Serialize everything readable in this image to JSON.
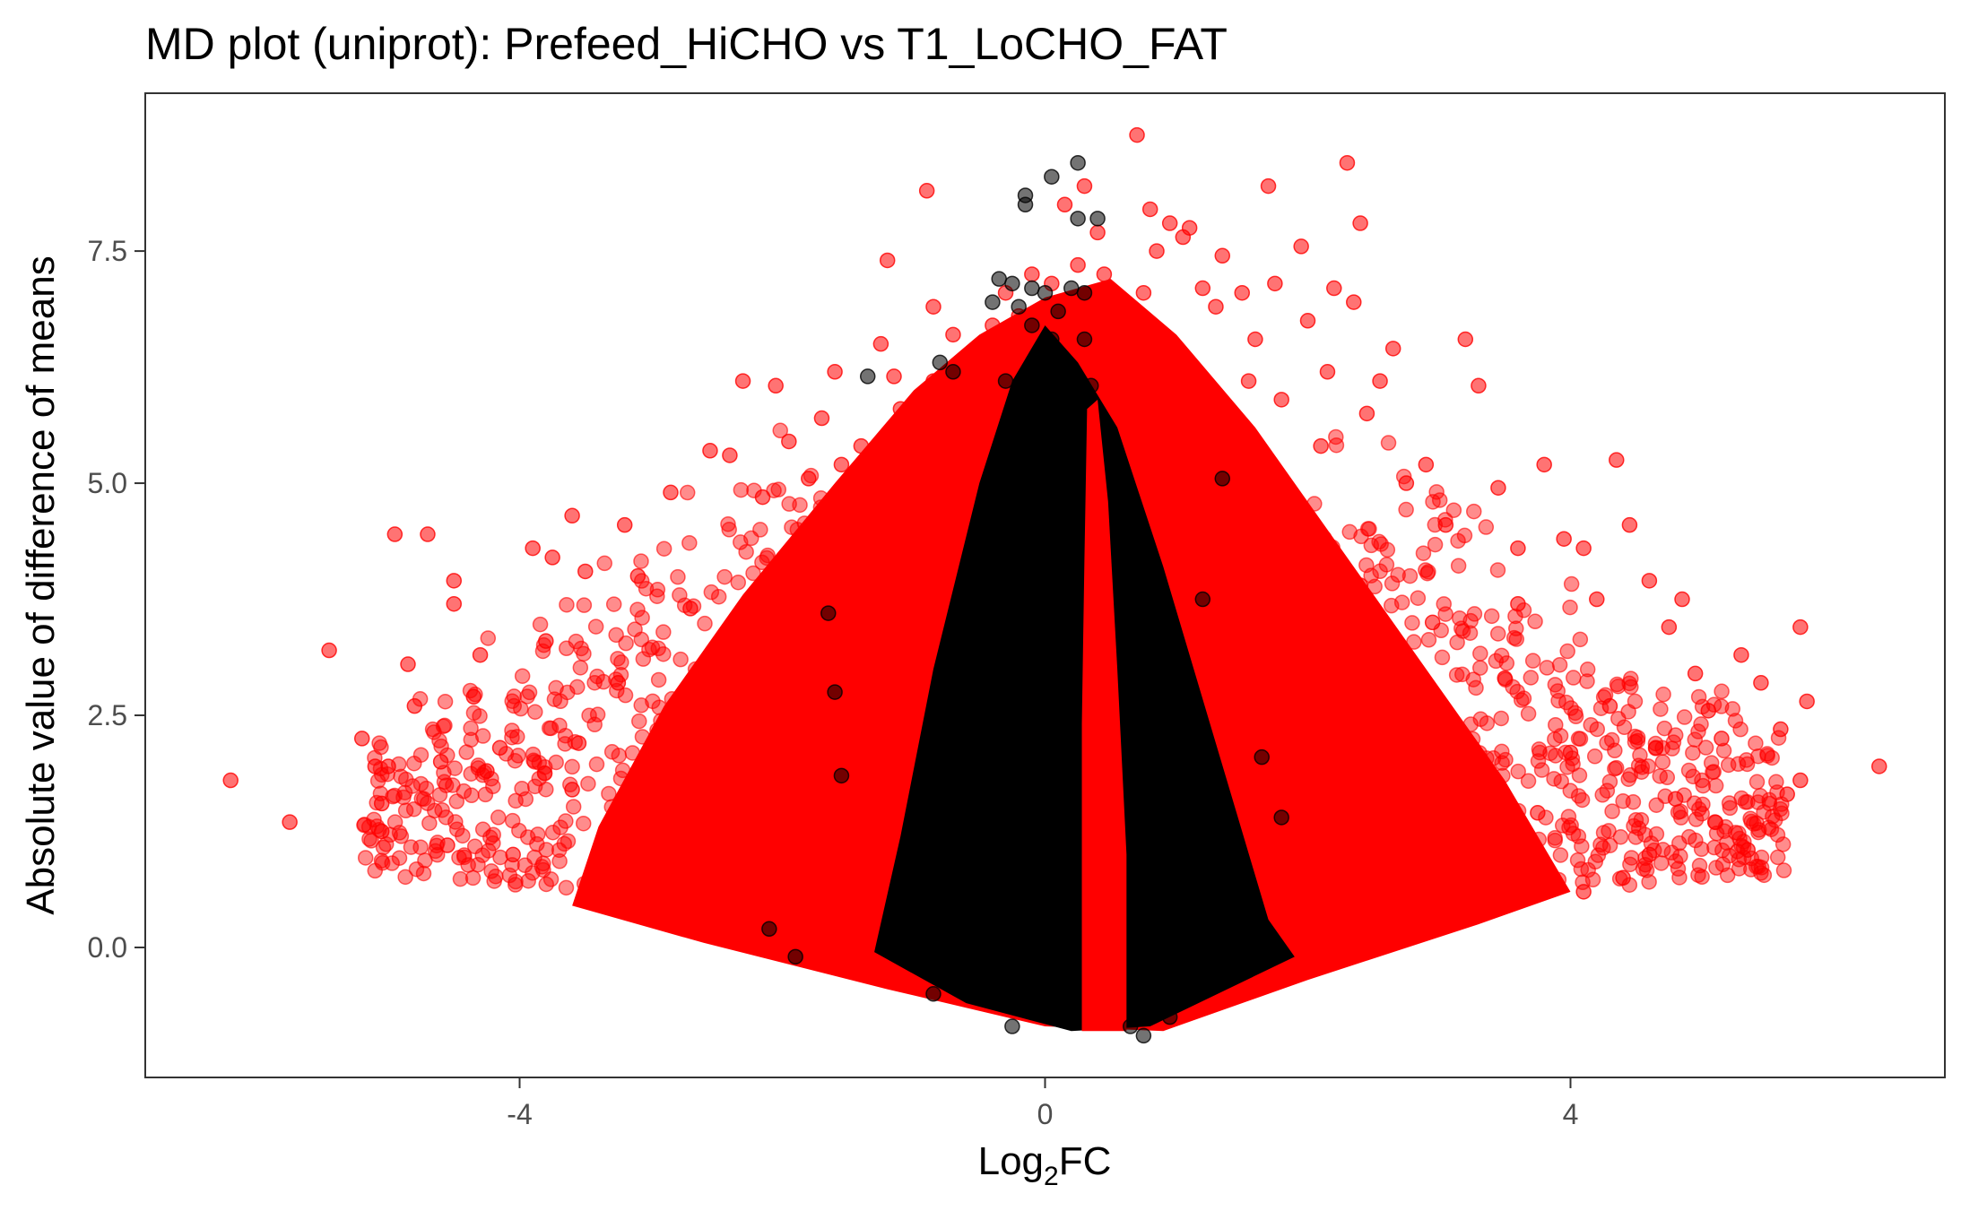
{
  "chart_data": {
    "type": "scatter",
    "title": "MD plot (uniprot): Prefeed_HiCHO vs T1_LoCHO_FAT",
    "xlabel_main": "Log",
    "xlabel_sub": "2",
    "xlabel_tail": "FC",
    "ylabel": "Absolute value of difference of means",
    "xlim": [
      -6.85,
      6.85
    ],
    "ylim": [
      -1.4,
      9.2
    ],
    "x_ticks": [
      {
        "value": -4,
        "label": "-4"
      },
      {
        "value": 0,
        "label": "0"
      },
      {
        "value": 4,
        "label": "4"
      }
    ],
    "y_ticks": [
      {
        "value": 0,
        "label": "0.0"
      },
      {
        "value": 2.5,
        "label": "2.5"
      },
      {
        "value": 5,
        "label": "5.0"
      },
      {
        "value": 7.5,
        "label": "7.5"
      }
    ],
    "grid": false,
    "series": [
      {
        "color": "#FF0000",
        "values": [
          [
            -6.2,
            1.8
          ],
          [
            -5.75,
            1.35
          ],
          [
            -5.45,
            3.2
          ],
          [
            -5.2,
            2.25
          ],
          [
            -5.05,
            1.55
          ],
          [
            -5.05,
            1.25
          ],
          [
            -5.0,
            1.95
          ],
          [
            -4.95,
            4.45
          ],
          [
            -4.85,
            3.05
          ],
          [
            -4.7,
            4.45
          ],
          [
            -4.55,
            1.1
          ],
          [
            -4.5,
            3.95
          ],
          [
            -4.5,
            3.7
          ],
          [
            -4.35,
            2.7
          ],
          [
            -4.25,
            1.9
          ],
          [
            -4.15,
            2.15
          ],
          [
            -3.9,
            4.3
          ],
          [
            -3.75,
            4.2
          ],
          [
            -3.6,
            4.65
          ],
          [
            -3.5,
            4.05
          ],
          [
            -3.2,
            4.55
          ],
          [
            -2.85,
            4.9
          ],
          [
            -2.55,
            5.35
          ],
          [
            -2.4,
            5.3
          ],
          [
            -2.3,
            6.1
          ],
          [
            -2.15,
            4.85
          ],
          [
            -2.05,
            6.05
          ],
          [
            -1.95,
            5.45
          ],
          [
            -1.8,
            5.05
          ],
          [
            -1.7,
            5.7
          ],
          [
            -1.6,
            6.2
          ],
          [
            -1.55,
            5.2
          ],
          [
            -1.4,
            5.4
          ],
          [
            -1.25,
            6.5
          ],
          [
            -1.2,
            7.4
          ],
          [
            -1.15,
            6.15
          ],
          [
            -1.1,
            5.8
          ],
          [
            -0.9,
            8.15
          ],
          [
            -0.85,
            6.9
          ],
          [
            -0.85,
            6.1
          ],
          [
            -0.7,
            6.6
          ],
          [
            -0.6,
            6.0
          ],
          [
            -0.5,
            6.3
          ],
          [
            -0.4,
            6.7
          ],
          [
            -0.3,
            7.05
          ],
          [
            -0.2,
            6.8
          ],
          [
            -0.1,
            7.25
          ],
          [
            0.05,
            7.15
          ],
          [
            0.15,
            8.0
          ],
          [
            0.25,
            7.35
          ],
          [
            0.3,
            8.2
          ],
          [
            0.4,
            7.7
          ],
          [
            0.45,
            7.25
          ],
          [
            0.5,
            7.05
          ],
          [
            0.55,
            6.8
          ],
          [
            0.7,
            8.75
          ],
          [
            0.75,
            7.05
          ],
          [
            0.8,
            7.95
          ],
          [
            0.85,
            7.5
          ],
          [
            0.95,
            7.8
          ],
          [
            1.05,
            7.65
          ],
          [
            1.1,
            7.75
          ],
          [
            1.2,
            7.1
          ],
          [
            1.3,
            6.9
          ],
          [
            1.35,
            7.45
          ],
          [
            1.5,
            7.05
          ],
          [
            1.55,
            6.1
          ],
          [
            1.6,
            6.55
          ],
          [
            1.7,
            8.2
          ],
          [
            1.75,
            7.15
          ],
          [
            1.8,
            5.9
          ],
          [
            1.95,
            7.55
          ],
          [
            2.0,
            6.75
          ],
          [
            2.1,
            5.4
          ],
          [
            2.15,
            6.2
          ],
          [
            2.2,
            7.1
          ],
          [
            2.3,
            8.45
          ],
          [
            2.35,
            6.95
          ],
          [
            2.4,
            7.8
          ],
          [
            2.45,
            5.75
          ],
          [
            2.55,
            6.1
          ],
          [
            2.65,
            6.45
          ],
          [
            2.75,
            5.0
          ],
          [
            2.9,
            5.2
          ],
          [
            3.05,
            4.55
          ],
          [
            3.2,
            6.55
          ],
          [
            3.3,
            6.05
          ],
          [
            3.45,
            4.95
          ],
          [
            3.6,
            4.3
          ],
          [
            3.8,
            5.2
          ],
          [
            3.95,
            4.4
          ],
          [
            4.1,
            4.3
          ],
          [
            4.2,
            3.75
          ],
          [
            4.35,
            5.25
          ],
          [
            4.45,
            4.55
          ],
          [
            4.6,
            3.95
          ],
          [
            4.75,
            3.45
          ],
          [
            4.85,
            3.75
          ],
          [
            4.95,
            2.95
          ],
          [
            5.05,
            2.55
          ],
          [
            5.15,
            2.25
          ],
          [
            5.3,
            3.15
          ],
          [
            5.35,
            1.05
          ],
          [
            5.45,
            2.85
          ],
          [
            5.6,
            2.35
          ],
          [
            5.65,
            1.65
          ],
          [
            5.75,
            1.8
          ],
          [
            5.8,
            2.65
          ],
          [
            5.75,
            3.45
          ],
          [
            6.35,
            1.95
          ],
          [
            4.8,
            1.6
          ],
          [
            4.6,
            1.0
          ],
          [
            4.4,
            0.75
          ],
          [
            4.1,
            0.6
          ],
          [
            4.0,
            2.1
          ],
          [
            3.75,
            1.45
          ],
          [
            3.5,
            2.9
          ],
          [
            3.25,
            1.2
          ],
          [
            2.95,
            3.5
          ],
          [
            2.7,
            2.2
          ],
          [
            2.4,
            3.9
          ],
          [
            2.2,
            1.1
          ],
          [
            -2.45,
            2.2
          ],
          [
            -2.7,
            3.65
          ],
          [
            -3.0,
            1.4
          ],
          [
            -3.25,
            2.85
          ],
          [
            -3.55,
            2.2
          ],
          [
            -3.8,
            3.3
          ],
          [
            -4.05,
            1.0
          ],
          [
            -4.3,
            3.15
          ],
          [
            -4.6,
            2.0
          ],
          [
            -2.1,
            1.55
          ],
          [
            -1.9,
            3.7
          ],
          [
            -1.65,
            2.6
          ],
          [
            -1.45,
            4.3
          ],
          [
            -1.3,
            1.9
          ],
          [
            1.55,
            4.2
          ],
          [
            1.75,
            2.35
          ],
          [
            1.95,
            4.75
          ],
          [
            2.05,
            1.8
          ],
          [
            -3.6,
            1.7
          ],
          [
            -3.1,
            4.0
          ],
          [
            -2.7,
            0.95
          ],
          [
            3.05,
            0.9
          ],
          [
            3.6,
            3.7
          ],
          [
            4.3,
            2.6
          ],
          [
            -4.8,
            2.6
          ],
          [
            -5.1,
            1.95
          ],
          [
            5.1,
            1.35
          ],
          [
            4.65,
            2.15
          ]
        ]
      },
      {
        "color": "#000000",
        "values": [
          [
            0.05,
            8.3
          ],
          [
            0.25,
            8.45
          ],
          [
            -0.15,
            8.1
          ],
          [
            -0.15,
            8.0
          ],
          [
            0.25,
            7.85
          ],
          [
            0.4,
            7.85
          ],
          [
            -0.35,
            7.2
          ],
          [
            -0.25,
            7.15
          ],
          [
            -0.1,
            7.1
          ],
          [
            0.0,
            7.05
          ],
          [
            0.2,
            7.1
          ],
          [
            0.3,
            7.05
          ],
          [
            -0.4,
            6.95
          ],
          [
            -0.2,
            6.9
          ],
          [
            0.1,
            6.85
          ],
          [
            -0.1,
            6.7
          ],
          [
            0.05,
            6.55
          ],
          [
            0.3,
            6.55
          ],
          [
            -0.8,
            6.3
          ],
          [
            -0.7,
            6.2
          ],
          [
            -1.35,
            6.15
          ],
          [
            -0.3,
            6.1
          ],
          [
            0.35,
            6.05
          ],
          [
            -0.15,
            5.85
          ],
          [
            0.25,
            5.7
          ],
          [
            1.35,
            5.05
          ],
          [
            1.2,
            3.75
          ],
          [
            0.85,
            3.1
          ],
          [
            -1.65,
            3.6
          ],
          [
            -1.6,
            2.75
          ],
          [
            -1.55,
            1.85
          ],
          [
            1.8,
            1.4
          ],
          [
            1.65,
            2.05
          ],
          [
            -2.1,
            0.2
          ],
          [
            -1.9,
            -0.1
          ],
          [
            -0.85,
            -0.5
          ],
          [
            0.75,
            -0.95
          ],
          [
            0.65,
            -0.85
          ],
          [
            0.95,
            -0.75
          ],
          [
            -0.25,
            -0.85
          ]
        ]
      }
    ]
  }
}
